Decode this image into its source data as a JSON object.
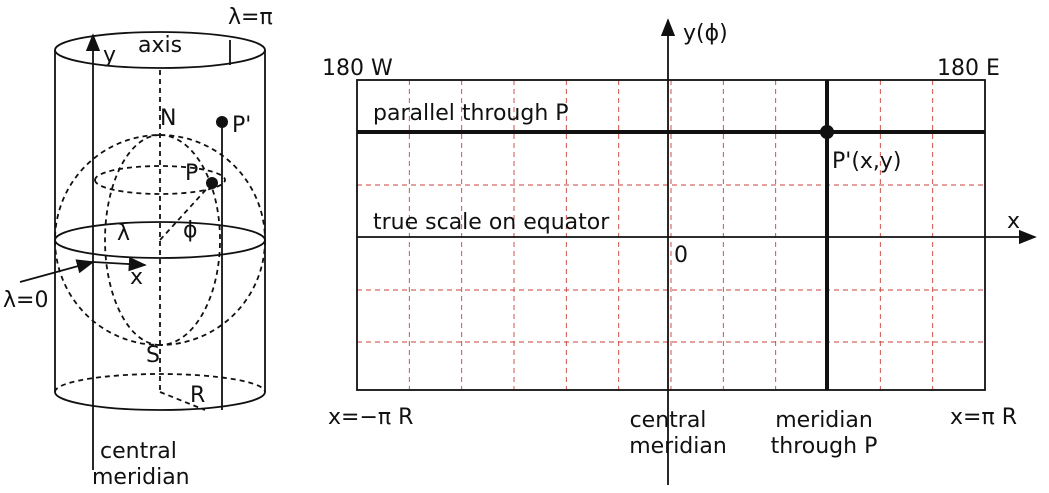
{
  "cylinder": {
    "axis_y": "y",
    "axis": "axis",
    "lambda_pi": "λ=π",
    "north": "N",
    "p_prime": "P'",
    "p": "P",
    "lambda": "λ",
    "phi": "ϕ",
    "x": "x",
    "lambda_zero": "λ=0",
    "south": "S",
    "radius": "R",
    "central_meridian": [
      "central",
      "meridian"
    ]
  },
  "map": {
    "y_axis": "y(ϕ)",
    "x_axis": "x",
    "left_top": "180 W",
    "right_top": "180 E",
    "parallel": "parallel through P",
    "equator": "true scale on equator",
    "point": "P'(x,y)",
    "origin": "0",
    "x_min": "x=−π R",
    "x_max": "x=π R",
    "central_meridian": [
      "central",
      "meridian"
    ],
    "meridian_p": [
      "meridian",
      "through P"
    ]
  }
}
